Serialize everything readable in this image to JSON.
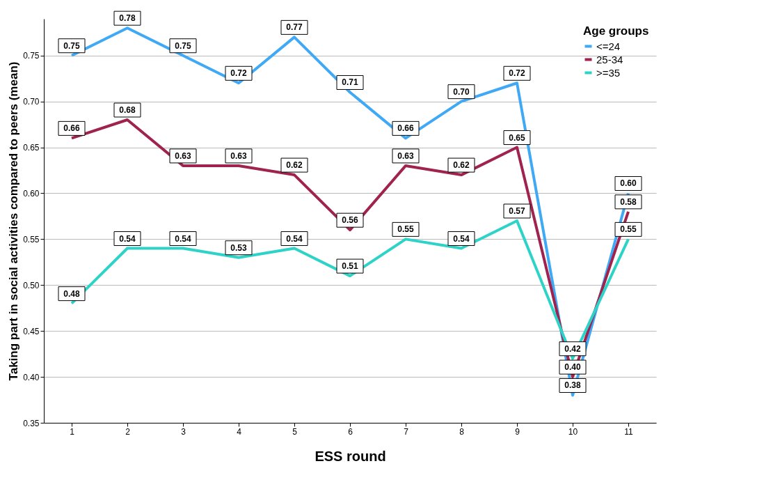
{
  "chart_data": {
    "type": "line",
    "xlabel": "ESS round",
    "ylabel": "Taking part in social activities compared to peers (mean)",
    "legend_title": "Age groups",
    "categories": [
      "1",
      "2",
      "3",
      "4",
      "5",
      "6",
      "7",
      "8",
      "9",
      "10",
      "11"
    ],
    "series": [
      {
        "name": "<=24",
        "color": "#3fa9f5",
        "values": [
          0.75,
          0.78,
          0.75,
          0.72,
          0.77,
          0.71,
          0.66,
          0.7,
          0.72,
          0.38,
          0.6
        ],
        "value_labels": [
          "0.75",
          "0.78",
          "0.75",
          "0.72",
          "0.77",
          "0.71",
          "0.66",
          "0.70",
          "0.72",
          "0.38",
          "0.60"
        ]
      },
      {
        "name": "25-34",
        "color": "#a0224f",
        "values": [
          0.66,
          0.68,
          0.63,
          0.63,
          0.62,
          0.56,
          0.63,
          0.62,
          0.65,
          0.4,
          0.58
        ],
        "value_labels": [
          "0.66",
          "0.68",
          "0.63",
          "0.63",
          "0.62",
          "0.56",
          "0.63",
          "0.62",
          "0.65",
          "0.40",
          "0.58"
        ]
      },
      {
        "name": ">=35",
        "color": "#2ed3c8",
        "values": [
          0.48,
          0.54,
          0.54,
          0.53,
          0.54,
          0.51,
          0.55,
          0.54,
          0.57,
          0.42,
          0.55
        ],
        "value_labels": [
          "0.48",
          "0.54",
          "0.54",
          "0.53",
          "0.54",
          "0.51",
          "0.55",
          "0.54",
          "0.57",
          "0.42",
          "0.55"
        ]
      }
    ],
    "ylim": [
      0.35,
      0.79
    ],
    "yticks": [
      0.35,
      {
        "value": 0.4,
        "label": "0.40"
      },
      0.45,
      {
        "value": 0.5,
        "label": "0.50"
      },
      0.55,
      {
        "value": 0.6,
        "label": "0.60"
      },
      0.65,
      {
        "value": 0.7,
        "label": "0.70"
      },
      0.75
    ],
    "grid": "y",
    "legend": "top right"
  }
}
